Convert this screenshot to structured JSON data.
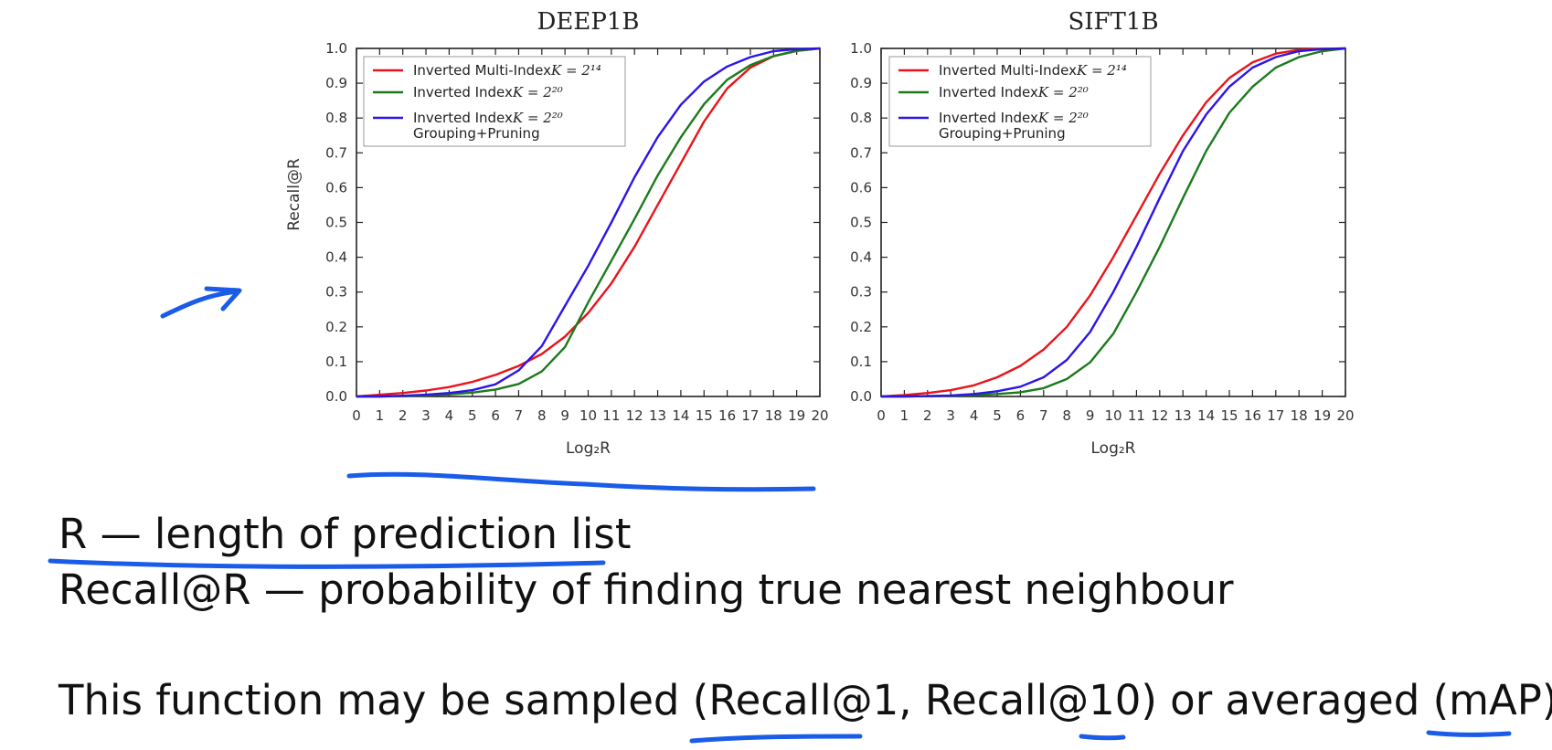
{
  "captions": {
    "line1": "R — length of prediction list",
    "line2": "Recall@R — probability of finding true nearest neighbour",
    "line3": "This function may be sampled (Recall@1, Recall@10) or averaged (mAP)"
  },
  "colors": {
    "red": "#e8141b",
    "green": "#1c7a1c",
    "blue": "#2b14e8",
    "annotation": "#1a5ce8"
  },
  "chart_data": [
    {
      "type": "line",
      "title": "DEEP1B",
      "xlabel": "Log₂R",
      "ylabel": "Recall@R",
      "xlim": [
        0,
        20
      ],
      "ylim": [
        0,
        1
      ],
      "x": [
        0,
        1,
        2,
        3,
        4,
        5,
        6,
        7,
        8,
        9,
        10,
        11,
        12,
        13,
        14,
        15,
        16,
        17,
        18,
        19,
        20
      ],
      "xticks": [
        0,
        1,
        2,
        3,
        4,
        5,
        6,
        7,
        8,
        9,
        10,
        11,
        12,
        13,
        14,
        15,
        16,
        17,
        18,
        19,
        20
      ],
      "yticks": [
        "0.0",
        "0.1",
        "0.2",
        "0.3",
        "0.4",
        "0.5",
        "0.6",
        "0.7",
        "0.8",
        "0.9",
        "1.0"
      ],
      "legend_position": "top-left",
      "series": [
        {
          "name": "Inverted Multi-Index",
          "math": "K = 2¹⁴",
          "color": "red",
          "values": [
            0.0,
            0.005,
            0.01,
            0.017,
            0.027,
            0.042,
            0.062,
            0.088,
            0.122,
            0.172,
            0.24,
            0.325,
            0.43,
            0.55,
            0.67,
            0.79,
            0.885,
            0.945,
            0.978,
            0.993,
            1.0
          ]
        },
        {
          "name": "Inverted Index",
          "math": "K = 2²⁰",
          "color": "green",
          "values": [
            0.0,
            0.0,
            0.001,
            0.003,
            0.006,
            0.011,
            0.02,
            0.036,
            0.072,
            0.142,
            0.27,
            0.39,
            0.51,
            0.635,
            0.745,
            0.84,
            0.91,
            0.952,
            0.978,
            0.993,
            1.0
          ]
        },
        {
          "name": "Inverted Index",
          "math": "K = 2²⁰",
          "name2": "Grouping+Pruning",
          "color": "blue",
          "values": [
            0.0,
            0.0,
            0.002,
            0.005,
            0.01,
            0.018,
            0.035,
            0.075,
            0.145,
            0.26,
            0.375,
            0.5,
            0.63,
            0.745,
            0.838,
            0.905,
            0.948,
            0.975,
            0.992,
            0.998,
            1.0
          ]
        }
      ]
    },
    {
      "type": "line",
      "title": "SIFT1B",
      "xlabel": "Log₂R",
      "ylabel": "",
      "xlim": [
        0,
        20
      ],
      "ylim": [
        0,
        1
      ],
      "x": [
        0,
        1,
        2,
        3,
        4,
        5,
        6,
        7,
        8,
        9,
        10,
        11,
        12,
        13,
        14,
        15,
        16,
        17,
        18,
        19,
        20
      ],
      "xticks": [
        0,
        1,
        2,
        3,
        4,
        5,
        6,
        7,
        8,
        9,
        10,
        11,
        12,
        13,
        14,
        15,
        16,
        17,
        18,
        19,
        20
      ],
      "yticks": [
        "0.0",
        "0.1",
        "0.2",
        "0.3",
        "0.4",
        "0.5",
        "0.6",
        "0.7",
        "0.8",
        "0.9",
        "1.0"
      ],
      "legend_position": "top-left",
      "series": [
        {
          "name": "Inverted Multi-Index",
          "math": "K = 2¹⁴",
          "color": "red",
          "values": [
            0.0,
            0.004,
            0.01,
            0.018,
            0.032,
            0.055,
            0.088,
            0.135,
            0.2,
            0.29,
            0.4,
            0.52,
            0.64,
            0.75,
            0.845,
            0.915,
            0.96,
            0.985,
            0.996,
            0.999,
            1.0
          ]
        },
        {
          "name": "Inverted Index",
          "math": "K = 2²⁰",
          "color": "green",
          "values": [
            0.0,
            0.0,
            0.001,
            0.002,
            0.004,
            0.007,
            0.012,
            0.024,
            0.05,
            0.098,
            0.18,
            0.3,
            0.43,
            0.57,
            0.705,
            0.815,
            0.89,
            0.945,
            0.975,
            0.992,
            1.0
          ]
        },
        {
          "name": "Inverted Index",
          "math": "K = 2²⁰",
          "name2": "Grouping+Pruning",
          "color": "blue",
          "values": [
            0.0,
            0.0,
            0.001,
            0.003,
            0.007,
            0.015,
            0.028,
            0.055,
            0.105,
            0.185,
            0.3,
            0.43,
            0.57,
            0.705,
            0.81,
            0.89,
            0.945,
            0.975,
            0.992,
            0.998,
            1.0
          ]
        }
      ]
    }
  ]
}
